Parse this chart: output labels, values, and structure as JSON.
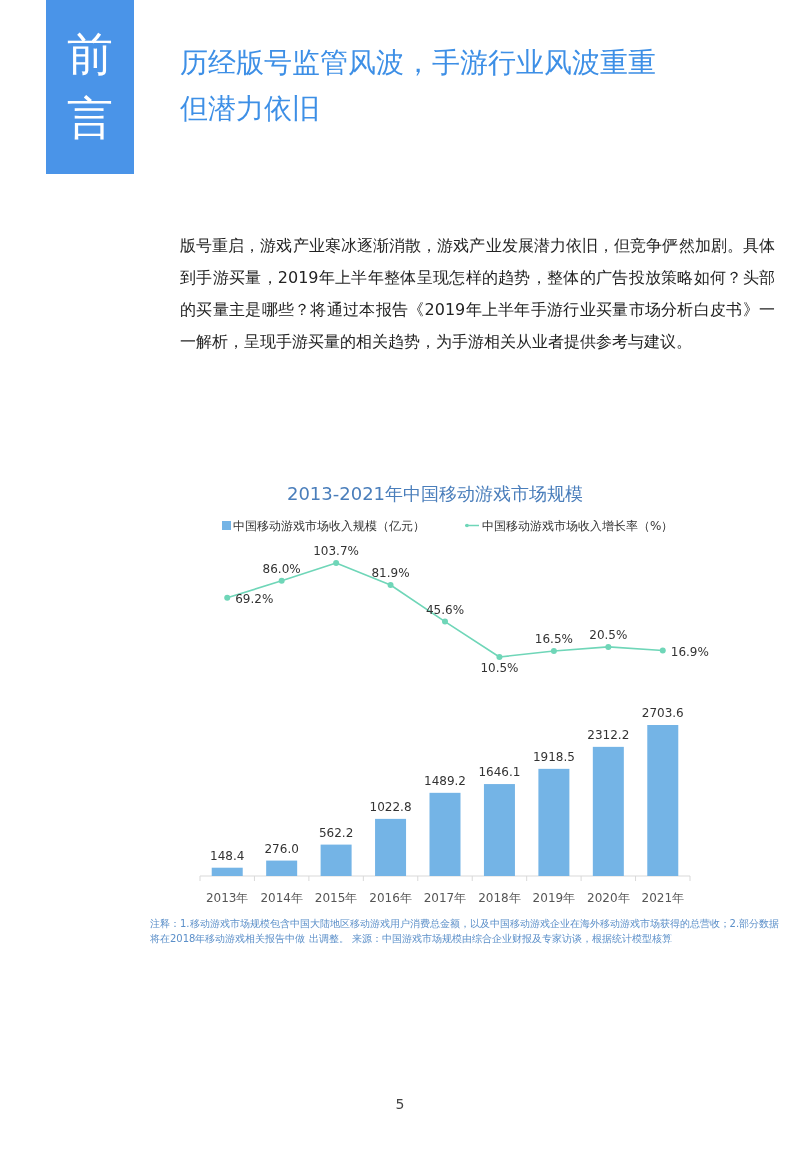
{
  "chart_data": [
    {
      "type": "line",
      "title": "2013-2021年中国移动游戏市场规模",
      "categories": [
        null,
        null,
        null,
        null,
        null,
        null,
        null,
        null,
        null
      ],
      "series": [
        {
          "name": "中国移动游戏市场收入增长率（%）",
          "color": "#6fd6b8",
          "marker": "circle",
          "values": [
            69.2,
            86.0,
            103.7,
            81.9,
            45.6,
            10.5,
            16.5,
            20.5,
            16.9
          ],
          "value_labels": [
            "69.2%",
            "86.0%",
            "103.7%",
            "81.9%",
            "45.6%",
            "10.5%",
            "16.5%",
            "20.5%",
            "16.9%"
          ]
        }
      ],
      "data_labels": true,
      "legend": "top",
      "annotations": [
        "前言",
        "历经版号监管风波，手游行业风波重重但潜力依旧",
        "版号重启，游戏产业寒冰逐渐消散，游戏产业发展潜力依旧，但竞争俨然加剧。具体到手游买量，2019年上半年整体呈现怎样的趋势，整体的广告投放策略如何？头部的买量主是哪些？将通过本报告《2019年上半年手游行业买量市场分析白皮书》一一解析，呈现手游买量的相关趋势，为手游相关从业者提供参考与建议。",
        "注释：1.移动游戏市场规模包含中国大陆地区移动游戏用户消费总金额，以及中国移动游戏企业在海外移动游戏市场获得的总营收；2.部分数据将在2018年移动游戏相关报告中做 出调整。 来源：中国游戏市场规模由综合企业财报及专家访谈，根据统计模型核算",
        "5"
      ]
    },
    {
      "type": "bar",
      "categories": [
        "2013年",
        "2014年",
        "2015年",
        "2016年",
        "2017年",
        "2018年",
        "2019年",
        "2020年",
        "2021年"
      ],
      "series": [
        {
          "name": "中国移动游戏市场收入规模（亿元）",
          "color": "#74b4e6",
          "values": [
            148.4,
            276.0,
            562.2,
            1022.8,
            1489.2,
            1646.1,
            1918.5,
            2312.2,
            2703.6
          ],
          "value_labels": [
            "148.4",
            "276.0",
            "562.2",
            "1022.8",
            "1489.2",
            "1646.1",
            "1918.5",
            "2312.2",
            "2703.6"
          ]
        }
      ],
      "data_labels": true,
      "legend": "top"
    }
  ]
}
